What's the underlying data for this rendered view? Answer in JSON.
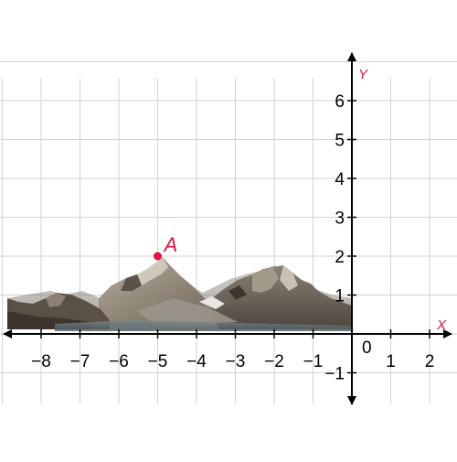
{
  "axes": {
    "x_label": "X",
    "y_label": "Y",
    "origin_label": "0",
    "x_range": [
      -9,
      2.5
    ],
    "y_range": [
      -1.8,
      7
    ],
    "x_ticks": [
      -8,
      -7,
      -6,
      -5,
      -4,
      -3,
      -2,
      -1,
      1,
      2
    ],
    "x_tick_labels": [
      "−8",
      "−7",
      "−6",
      "−5",
      "−4",
      "−3",
      "−2",
      "−1",
      "1",
      "2"
    ],
    "y_ticks": [
      -1,
      1,
      2,
      3,
      4,
      5,
      6
    ],
    "y_tick_labels": [
      "−1",
      "1",
      "2",
      "3",
      "4",
      "5",
      "6"
    ],
    "grid": true
  },
  "point": {
    "label": "A",
    "x": -5,
    "y": 2
  },
  "colors": {
    "axis": "#000000",
    "grid": "#d3d3d3",
    "axis_label": "#e0143c",
    "point": "#e0143c",
    "tick_label": "#000000"
  },
  "illustration": "mountain-landscape"
}
